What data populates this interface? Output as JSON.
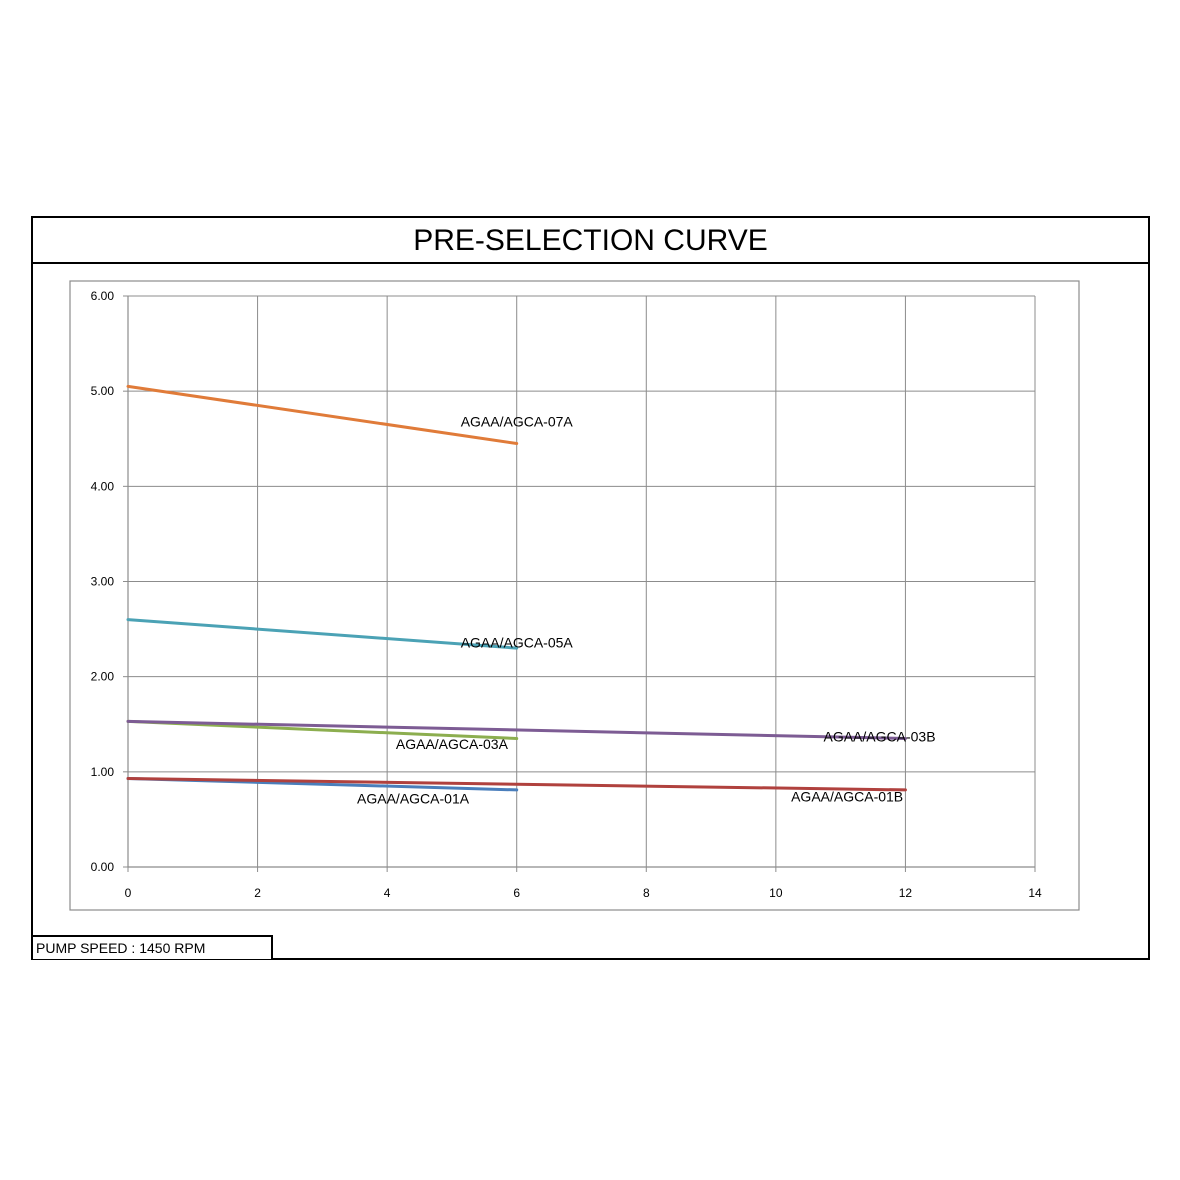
{
  "page": {
    "title": "PRE-SELECTION CURVE",
    "footer": "PUMP SPEED : 1450 RPM"
  },
  "chart_data": {
    "type": "line",
    "title": "PRE-SELECTION CURVE",
    "xlabel": "",
    "ylabel": "",
    "xlim": [
      0,
      14
    ],
    "ylim": [
      0,
      6
    ],
    "xticks": [
      0,
      2,
      4,
      6,
      8,
      10,
      12,
      14
    ],
    "xtick_labels": [
      "0",
      "2",
      "4",
      "6",
      "8",
      "10",
      "12",
      "14"
    ],
    "yticks": [
      0,
      1,
      2,
      3,
      4,
      5,
      6
    ],
    "ytick_labels": [
      "0.00",
      "1.00",
      "2.00",
      "3.00",
      "4.00",
      "5.00",
      "6.00"
    ],
    "grid": true,
    "legend": "none",
    "series": [
      {
        "name": "AGAA/AGCA-07A",
        "color": "#E07B39",
        "x": [
          0,
          6
        ],
        "y": [
          5.05,
          4.45
        ],
        "label_at": [
          6,
          4.68
        ]
      },
      {
        "name": "AGAA/AGCA-05A",
        "color": "#4BA2B5",
        "x": [
          0,
          6
        ],
        "y": [
          2.6,
          2.3
        ],
        "label_at": [
          6,
          2.36
        ]
      },
      {
        "name": "AGAA/AGCA-03A",
        "color": "#8CAE4F",
        "x": [
          0,
          6
        ],
        "y": [
          1.53,
          1.35
        ],
        "label_at": [
          5,
          1.29
        ]
      },
      {
        "name": "AGAA/AGCA-03B",
        "color": "#7D5C94",
        "x": [
          0,
          12
        ],
        "y": [
          1.53,
          1.35
        ],
        "label_at": [
          11.6,
          1.37
        ]
      },
      {
        "name": "AGAA/AGCA-01A",
        "color": "#4A7EBB",
        "x": [
          0,
          6
        ],
        "y": [
          0.93,
          0.81
        ],
        "label_at": [
          4.4,
          0.72
        ]
      },
      {
        "name": "AGAA/AGCA-01B",
        "color": "#B0413E",
        "x": [
          0,
          12
        ],
        "y": [
          0.93,
          0.81
        ],
        "label_at": [
          11.1,
          0.74
        ]
      }
    ]
  }
}
